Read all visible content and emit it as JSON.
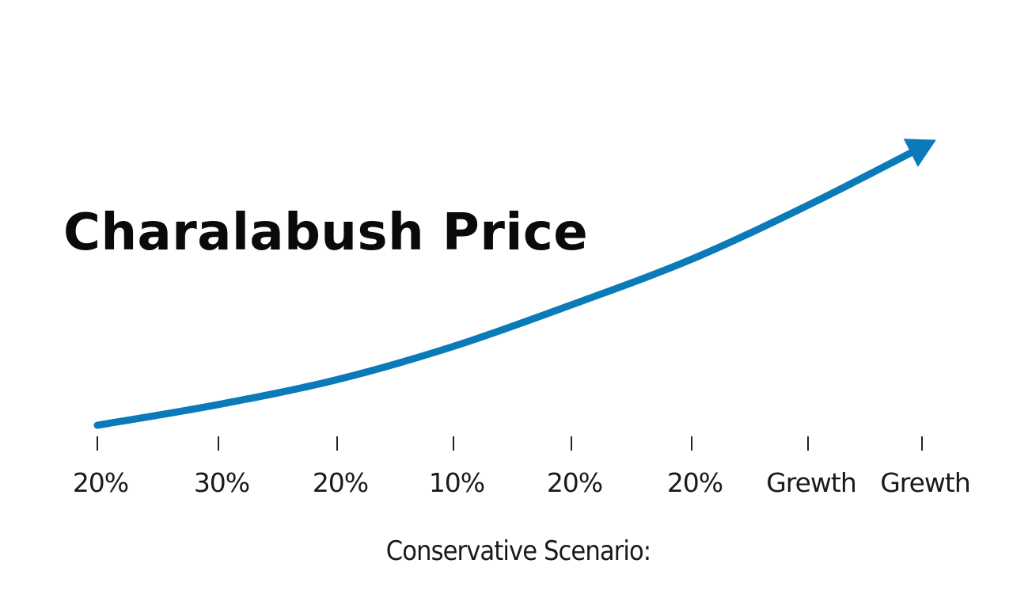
{
  "chart_data": {
    "type": "line",
    "title": "Charalabush Price",
    "xlabel": "Conservative Scenario:",
    "ylabel": "",
    "categories": [
      "20%",
      "30%",
      "20%",
      "10%",
      "20%",
      "20%",
      "Grewth",
      "Grewth"
    ],
    "series": [
      {
        "values": [
          0,
          5,
          11,
          19,
          29,
          40,
          53,
          67
        ]
      }
    ],
    "ylim": [
      0,
      70
    ],
    "grid": false,
    "legend": "none",
    "line_color": "#0a7ab8",
    "end_marker": "arrow"
  }
}
